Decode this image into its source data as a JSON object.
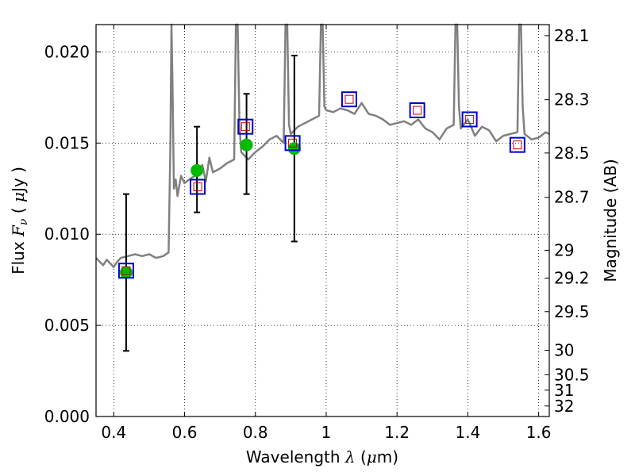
{
  "chart_data": {
    "type": "scatter",
    "xlabel": {
      "prefix": "Wavelength  ",
      "symbol": "λ",
      "unit": " (",
      "unit_symbol": "μ",
      "unit_end": "m)"
    },
    "ylabel": {
      "prefix": "Flux  ",
      "symbol": "F",
      "subscript": "ν",
      "open": "  ( ",
      "unit_symbol": "μ",
      "unit_end": "Jy )"
    },
    "y2label": "Magnitude (AB)",
    "xlim": [
      0.35,
      1.63
    ],
    "ylim": [
      0.0,
      0.0215
    ],
    "grid": true,
    "x_ticks": [
      {
        "value": 0.4,
        "label": "0.4"
      },
      {
        "value": 0.6,
        "label": "0.6"
      },
      {
        "value": 0.8,
        "label": "0.8"
      },
      {
        "value": 1.0,
        "label": "1"
      },
      {
        "value": 1.2,
        "label": "1.2"
      },
      {
        "value": 1.4,
        "label": "1.4"
      },
      {
        "value": 1.6,
        "label": "1.6"
      }
    ],
    "y_ticks": [
      {
        "value": 0.0,
        "label": "0.000"
      },
      {
        "value": 0.005,
        "label": "0.005"
      },
      {
        "value": 0.01,
        "label": "0.010"
      },
      {
        "value": 0.015,
        "label": "0.015"
      },
      {
        "value": 0.02,
        "label": "0.020"
      }
    ],
    "magnitude_ticks": [
      {
        "value": 28.1,
        "label": "28.1"
      },
      {
        "value": 28.3,
        "label": "28.3"
      },
      {
        "value": 28.5,
        "label": "28.5"
      },
      {
        "value": 28.7,
        "label": "28.7"
      },
      {
        "value": 29.0,
        "label": "29"
      },
      {
        "value": 29.2,
        "label": "29.2"
      },
      {
        "value": 29.5,
        "label": "29.5"
      },
      {
        "value": 30.0,
        "label": "30"
      },
      {
        "value": 30.5,
        "label": "30.5"
      },
      {
        "value": 31.0,
        "label": "31"
      },
      {
        "value": 32.0,
        "label": "32"
      }
    ],
    "colors": {
      "spectrum": "#808080",
      "observed": "#00bb00",
      "error_bar": "#000000",
      "model_box": "#0000cc",
      "model_inner": "#cc0000"
    },
    "series": [
      {
        "kind": "line",
        "x": [
          0.35,
          0.36,
          0.37,
          0.38,
          0.39,
          0.4,
          0.41,
          0.42,
          0.44,
          0.46,
          0.48,
          0.5,
          0.52,
          0.54,
          0.555,
          0.56,
          0.563,
          0.566,
          0.57,
          0.575,
          0.58,
          0.59,
          0.6,
          0.62,
          0.64,
          0.65,
          0.66,
          0.67,
          0.68,
          0.7,
          0.72,
          0.74,
          0.745,
          0.75,
          0.755,
          0.76,
          0.78,
          0.8,
          0.82,
          0.84,
          0.86,
          0.88,
          0.885,
          0.89,
          0.895,
          0.9,
          0.92,
          0.94,
          0.96,
          0.98,
          0.985,
          0.99,
          0.995,
          1.0,
          1.02,
          1.04,
          1.06,
          1.08,
          1.1,
          1.12,
          1.14,
          1.16,
          1.18,
          1.2,
          1.22,
          1.24,
          1.26,
          1.28,
          1.3,
          1.32,
          1.34,
          1.36,
          1.365,
          1.37,
          1.375,
          1.38,
          1.4,
          1.42,
          1.44,
          1.46,
          1.48,
          1.5,
          1.52,
          1.54,
          1.545,
          1.55,
          1.555,
          1.56,
          1.58,
          1.6,
          1.62,
          1.63
        ],
        "y": [
          0.0087,
          0.0085,
          0.0083,
          0.0086,
          0.0084,
          0.0082,
          0.0085,
          0.0087,
          0.0088,
          0.0089,
          0.0088,
          0.0089,
          0.0087,
          0.0088,
          0.009,
          0.015,
          0.0215,
          0.018,
          0.0125,
          0.013,
          0.0121,
          0.0132,
          0.0128,
          0.0131,
          0.0133,
          0.0138,
          0.0129,
          0.0142,
          0.0134,
          0.0136,
          0.0139,
          0.0141,
          0.0215,
          0.0215,
          0.016,
          0.0145,
          0.0141,
          0.0145,
          0.0148,
          0.0152,
          0.0154,
          0.015,
          0.0215,
          0.0215,
          0.016,
          0.0155,
          0.0159,
          0.0161,
          0.0163,
          0.0165,
          0.0215,
          0.0215,
          0.017,
          0.0168,
          0.0167,
          0.0169,
          0.0168,
          0.0166,
          0.0172,
          0.0166,
          0.0165,
          0.0163,
          0.016,
          0.0161,
          0.0162,
          0.016,
          0.0163,
          0.0158,
          0.0156,
          0.0152,
          0.0158,
          0.016,
          0.0215,
          0.0215,
          0.017,
          0.0158,
          0.0163,
          0.0154,
          0.0159,
          0.0157,
          0.0151,
          0.0154,
          0.0155,
          0.0156,
          0.0215,
          0.0215,
          0.017,
          0.0155,
          0.0152,
          0.0153,
          0.0156,
          0.0155
        ]
      },
      {
        "kind": "points",
        "x": [
          0.435,
          0.635,
          0.775,
          0.91
        ],
        "y": [
          0.0079,
          0.0135,
          0.0149,
          0.0147
        ],
        "err_low": [
          0.0036,
          0.0112,
          0.0122,
          0.0096
        ],
        "err_high": [
          0.0122,
          0.0159,
          0.0177,
          0.0198
        ]
      },
      {
        "kind": "boxes",
        "x": [
          0.435,
          0.637,
          0.772,
          0.905,
          1.065,
          1.257,
          1.405,
          1.54
        ],
        "y": [
          0.008,
          0.0126,
          0.0159,
          0.015,
          0.0174,
          0.0168,
          0.0163,
          0.0149
        ]
      }
    ]
  }
}
